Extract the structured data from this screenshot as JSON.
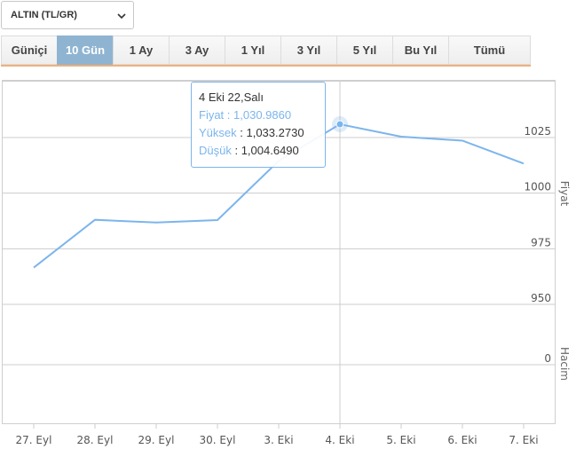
{
  "asset_select": {
    "value": "ALTIN (TL/GR)"
  },
  "tabs": [
    {
      "label": "Güniçi",
      "active": false
    },
    {
      "label": "10 Gün",
      "active": true
    },
    {
      "label": "1 Ay",
      "active": false
    },
    {
      "label": "3 Ay",
      "active": false
    },
    {
      "label": "1 Yıl",
      "active": false
    },
    {
      "label": "3 Yıl",
      "active": false
    },
    {
      "label": "5 Yıl",
      "active": false
    },
    {
      "label": "Bu Yıl",
      "active": false
    },
    {
      "label": "Tümü",
      "active": false
    }
  ],
  "tooltip": {
    "title": "4 Eki 22,Salı",
    "price_label": "Fiyat",
    "price_value": "1,030.9860",
    "high_label": "Yüksek",
    "high_value": "1,033.2730",
    "low_label": "Düşük",
    "low_value": "1,004.6490"
  },
  "colors": {
    "line": "#7cb5ec",
    "grid": "#cccccc",
    "active_tab": "#8fb4d1",
    "tab_underline": "#f0b07a"
  },
  "chart_data": {
    "type": "line",
    "x": [
      "27. Eyl",
      "28. Eyl",
      "29. Eyl",
      "30. Eyl",
      "3. Eki",
      "4. Eki",
      "5. Eki",
      "6. Eki",
      "7. Eki"
    ],
    "series": [
      {
        "values": [
          966.5,
          988.0,
          986.8,
          987.9,
          1014.5,
          1030.986,
          1025.4,
          1023.6,
          1013.3
        ]
      }
    ],
    "ylabel": "Fiyat",
    "yticks": [
      950,
      975,
      1000,
      1025
    ],
    "ylim": [
      950,
      1025
    ],
    "volume_label": "Hacim",
    "volume_ticks": [
      0
    ],
    "highlighted_index": 5,
    "grid": true
  }
}
